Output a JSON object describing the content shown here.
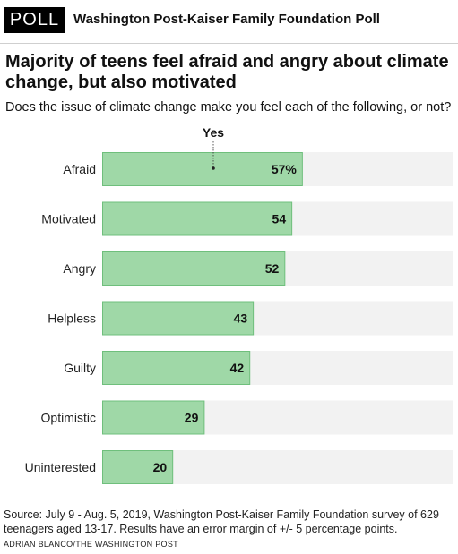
{
  "header": {
    "badge": "POLL",
    "name": "Washington Post-Kaiser Family Foundation Poll"
  },
  "title": "Majority of teens feel afraid and angry about climate change, but also motivated",
  "subtitle": "Does the issue of climate change make you feel each of the following, or not?",
  "chart_data": {
    "type": "bar",
    "orientation": "horizontal",
    "series": [
      {
        "name": "Yes",
        "values": [
          57,
          54,
          52,
          43,
          42,
          29,
          20
        ]
      }
    ],
    "categories": [
      "Afraid",
      "Motivated",
      "Angry",
      "Helpless",
      "Guilty",
      "Optimistic",
      "Uninterested"
    ],
    "value_labels": [
      "57%",
      "54",
      "52",
      "43",
      "42",
      "29",
      "20"
    ],
    "xlim": [
      0,
      100
    ],
    "grid": false,
    "colors": {
      "bar": "#9fd8a7",
      "bar_border": "#6fbf7c",
      "track": "#f2f2f2"
    }
  },
  "footer": {
    "source": "Source: July 9 - Aug. 5, 2019, Washington Post-Kaiser Family Foundation survey of 629 teenagers aged 13-17. Results have an error margin of +/- 5 percentage points.",
    "credit": "ADRIAN BLANCO/THE WASHINGTON POST"
  }
}
